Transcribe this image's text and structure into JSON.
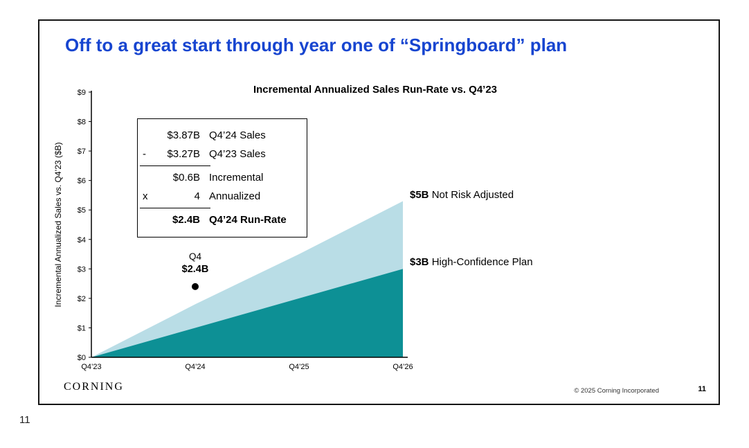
{
  "page": {
    "outer_page_number": "11"
  },
  "slide": {
    "title": "Off to a great start through year one of “Springboard” plan",
    "footer": {
      "brand": "CORNING",
      "copyright": "© 2025 Corning Incorporated",
      "page_number": "11"
    }
  },
  "calc_box": {
    "rows": [
      {
        "op": "",
        "value": "$3.87B",
        "label": "Q4’24 Sales"
      },
      {
        "op": "-",
        "value": "$3.27B",
        "label": "Q4’23 Sales"
      },
      {
        "op": "",
        "value": "$0.6B",
        "label": "Incremental"
      },
      {
        "op": "x",
        "value": "4",
        "label": "Annualized"
      },
      {
        "op": "",
        "value": "$2.4B",
        "label": "Q4’24 Run-Rate"
      }
    ]
  },
  "chart_data": {
    "type": "area",
    "title": "Incremental Annualized Sales Run-Rate vs. Q4’23",
    "ylabel": "Incremental Annualized Sales vs. Q4’23 ($B)",
    "categories": [
      "Q4’23",
      "Q4’24",
      "Q4’25",
      "Q4’26"
    ],
    "series": [
      {
        "name": "Not Risk Adjusted",
        "color": "#b9dde6",
        "values": [
          0,
          1.8,
          3.5,
          5.3
        ]
      },
      {
        "name": "High-Confidence Plan",
        "color": "#0d9095",
        "values": [
          0,
          1.0,
          2.0,
          3.0
        ]
      }
    ],
    "ylim": [
      0,
      9
    ],
    "yticks": [
      0,
      1,
      2,
      3,
      4,
      5,
      6,
      7,
      8,
      9
    ],
    "ytick_prefix": "$",
    "grid": false,
    "legend": "none",
    "point": {
      "category": "Q4’24",
      "value": 2.4,
      "label_top": "Q4",
      "label_bottom": "$2.4B"
    },
    "annotations": [
      {
        "bold": "$5B",
        "text": " Not Risk Adjusted",
        "at_value": 5
      },
      {
        "bold": "$3B",
        "text": " High-Confidence Plan",
        "at_value": 3
      }
    ]
  }
}
